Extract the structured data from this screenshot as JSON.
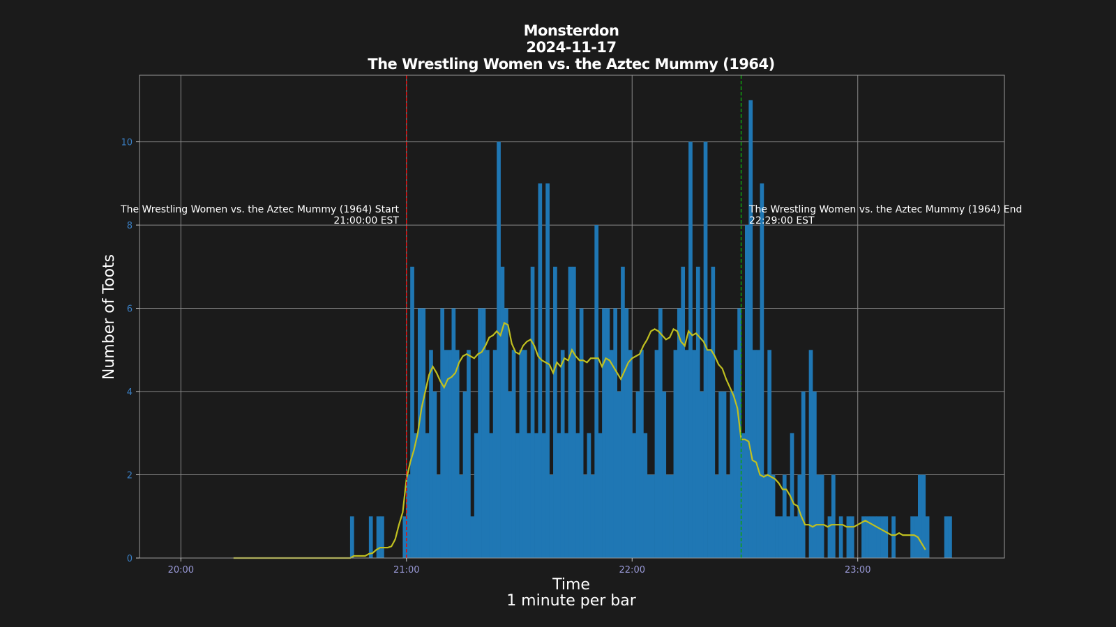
{
  "colors": {
    "background": "#1b1b1b",
    "bar": "#1f77b4",
    "smooth_line": "#c0c020",
    "start_line": "#e01010",
    "end_line": "#10a010",
    "grid": "#8a8a8a",
    "y_tick": "#3a7fc4",
    "x_tick": "#9a9ad8"
  },
  "chart_data": {
    "type": "bar",
    "title": [
      "Monsterdon",
      "2024-11-17",
      "The Wrestling Women vs. the Aztec Mummy (1964)"
    ],
    "xlabel": "Time",
    "xlabel_sub": "1 minute per bar",
    "ylabel": "Number of Toots",
    "x_range_minutes": [
      -11,
      219
    ],
    "ylim": [
      0,
      11.6
    ],
    "x_ticks": [
      {
        "minute": 0,
        "label": "20:00"
      },
      {
        "minute": 60,
        "label": "21:00"
      },
      {
        "minute": 120,
        "label": "22:00"
      },
      {
        "minute": 180,
        "label": "23:00"
      }
    ],
    "y_ticks": [
      0,
      2,
      4,
      6,
      8,
      10
    ],
    "grid": true,
    "bar_width_minutes": 1,
    "bar_start": "20:45",
    "values": [
      1,
      0,
      0,
      0,
      0,
      1,
      0,
      1,
      1,
      0,
      0,
      0,
      0,
      0,
      1,
      2,
      7,
      3,
      6,
      6,
      3,
      5,
      4,
      2,
      6,
      5,
      5,
      6,
      5,
      2,
      4,
      5,
      1,
      3,
      6,
      6,
      5,
      3,
      5,
      10,
      7,
      6,
      4,
      5,
      3,
      5,
      5,
      3,
      7,
      3,
      9,
      3,
      9,
      2,
      7,
      3,
      5,
      3,
      7,
      7,
      3,
      6,
      2,
      3,
      2,
      8,
      3,
      6,
      6,
      5,
      6,
      4,
      7,
      6,
      5,
      3,
      4,
      5,
      3,
      2,
      2,
      5,
      6,
      4,
      2,
      2,
      5,
      6,
      7,
      5,
      10,
      5,
      7,
      4,
      10,
      5,
      7,
      2,
      4,
      4,
      2,
      4,
      5,
      6,
      3,
      8,
      11,
      5,
      5,
      9,
      2,
      5,
      2,
      1,
      1,
      2,
      1,
      3,
      1,
      2,
      4,
      0,
      5,
      4,
      2,
      2,
      0,
      1,
      2,
      0,
      1,
      0,
      1,
      1,
      0,
      0,
      1,
      1,
      1,
      1,
      1,
      1,
      1,
      0,
      1,
      0,
      0,
      0,
      0,
      1,
      1,
      2,
      2,
      1,
      0,
      0,
      0,
      0,
      1,
      1
    ],
    "smooth_line": {
      "start_minute": 14,
      "values": [
        0,
        0,
        0,
        0,
        0,
        0,
        0,
        0,
        0,
        0,
        0,
        0,
        0,
        0,
        0,
        0,
        0,
        0,
        0,
        0,
        0,
        0,
        0,
        0,
        0,
        0,
        0,
        0,
        0,
        0,
        0,
        0,
        0.05,
        0.05,
        0.05,
        0.05,
        0.1,
        0.12,
        0.2,
        0.25,
        0.25,
        0.25,
        0.28,
        0.45,
        0.8,
        1.1,
        1.9,
        2.3,
        2.6,
        3.0,
        3.6,
        4.0,
        4.4,
        4.6,
        4.45,
        4.25,
        4.1,
        4.3,
        4.35,
        4.45,
        4.7,
        4.85,
        4.9,
        4.85,
        4.8,
        4.9,
        4.95,
        5.1,
        5.3,
        5.35,
        5.45,
        5.35,
        5.65,
        5.6,
        5.15,
        4.95,
        4.9,
        5.1,
        5.2,
        5.25,
        5.1,
        4.85,
        4.75,
        4.7,
        4.65,
        4.45,
        4.7,
        4.6,
        4.8,
        4.75,
        5.0,
        4.85,
        4.75,
        4.75,
        4.7,
        4.8,
        4.8,
        4.8,
        4.6,
        4.8,
        4.75,
        4.6,
        4.45,
        4.3,
        4.5,
        4.7,
        4.8,
        4.85,
        4.9,
        5.1,
        5.25,
        5.45,
        5.5,
        5.45,
        5.35,
        5.25,
        5.3,
        5.5,
        5.45,
        5.2,
        5.1,
        5.45,
        5.35,
        5.4,
        5.3,
        5.2,
        5.0,
        5.0,
        4.85,
        4.65,
        4.55,
        4.3,
        4.1,
        3.9,
        3.6,
        2.85,
        2.85,
        2.8,
        2.35,
        2.3,
        2.0,
        1.95,
        2.0,
        1.95,
        1.9,
        1.8,
        1.65,
        1.65,
        1.5,
        1.3,
        1.25,
        1.0,
        0.8,
        0.8,
        0.75,
        0.8,
        0.8,
        0.8,
        0.75,
        0.8,
        0.8,
        0.8,
        0.8,
        0.75,
        0.75,
        0.75,
        0.8,
        0.85,
        0.9,
        0.85,
        0.8,
        0.75,
        0.7,
        0.65,
        0.6,
        0.55,
        0.55,
        0.6,
        0.55,
        0.55,
        0.55,
        0.55,
        0.5,
        0.35,
        0.2
      ]
    },
    "annotations": [
      {
        "name": "start",
        "minute": 60,
        "label_line1": "The Wrestling Women vs. the Aztec Mummy (1964) Start",
        "label_line2": "21:00:00 EST"
      },
      {
        "name": "end",
        "minute": 149,
        "label_line1": "The Wrestling Women vs. the Aztec Mummy (1964) End",
        "label_line2": "22:29:00 EST"
      }
    ]
  }
}
